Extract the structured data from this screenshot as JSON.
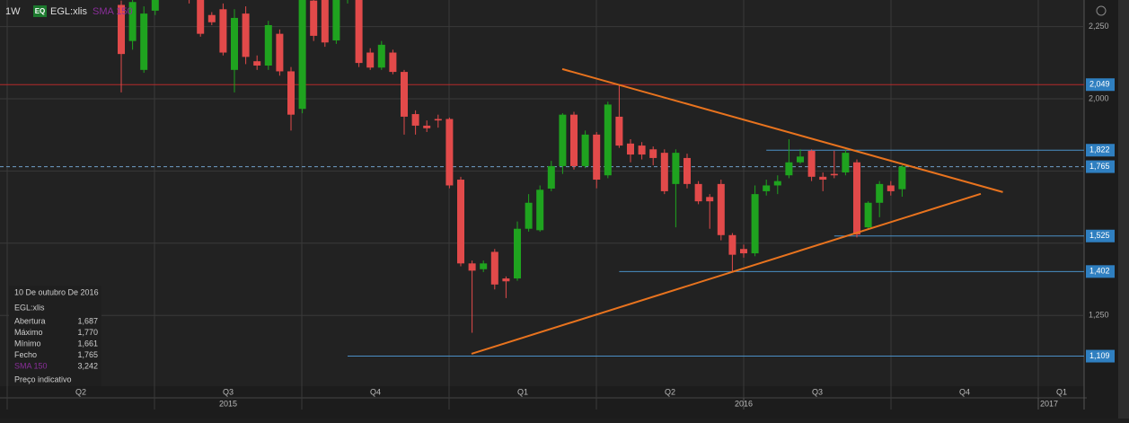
{
  "header": {
    "interval": "1W",
    "badge": "EQ",
    "symbol": "EGL:xlis",
    "indicator": "SMA 150"
  },
  "chart_data": {
    "type": "candlestick",
    "up_color": "#1fa31f",
    "down_color": "#e24a4a",
    "ohlc": [
      [
        2325,
        2340,
        2022,
        2155
      ],
      [
        2200,
        2345,
        2170,
        2335
      ],
      [
        2100,
        2320,
        2090,
        2295
      ],
      [
        2305,
        2360,
        2290,
        2345
      ],
      [
        2360,
        2400,
        2350,
        2380
      ],
      [
        2380,
        2410,
        2350,
        2370
      ],
      [
        2370,
        2390,
        2330,
        2345
      ],
      [
        2345,
        2350,
        2215,
        2225
      ],
      [
        2290,
        2300,
        2255,
        2265
      ],
      [
        2310,
        2330,
        2150,
        2160
      ],
      [
        2100,
        2310,
        2022,
        2280
      ],
      [
        2295,
        2320,
        2120,
        2145
      ],
      [
        2130,
        2150,
        2100,
        2115
      ],
      [
        2115,
        2270,
        2100,
        2255
      ],
      [
        2225,
        2240,
        2080,
        2095
      ],
      [
        2095,
        2110,
        1890,
        1945
      ],
      [
        1965,
        2360,
        1950,
        2342
      ],
      [
        2340,
        2350,
        2200,
        2218
      ],
      [
        2342,
        2360,
        2180,
        2195
      ],
      [
        2202,
        2360,
        2190,
        2342
      ],
      [
        2345,
        2390,
        2330,
        2370
      ],
      [
        2342,
        2360,
        2110,
        2124
      ],
      [
        2160,
        2175,
        2100,
        2108
      ],
      [
        2108,
        2200,
        2100,
        2187
      ],
      [
        2160,
        2170,
        2085,
        2093
      ],
      [
        2093,
        2100,
        1876,
        1938
      ],
      [
        1947,
        1960,
        1876,
        1907
      ],
      [
        1907,
        1925,
        1885,
        1898
      ],
      [
        1930,
        1945,
        1900,
        1925
      ],
      [
        1930,
        1935,
        1690,
        1700
      ],
      [
        1720,
        1730,
        1420,
        1430
      ],
      [
        1430,
        1440,
        1190,
        1405
      ],
      [
        1410,
        1440,
        1400,
        1430
      ],
      [
        1470,
        1480,
        1340,
        1357
      ],
      [
        1378,
        1385,
        1310,
        1368
      ],
      [
        1378,
        1575,
        1370,
        1550
      ],
      [
        1550,
        1670,
        1540,
        1640
      ],
      [
        1545,
        1700,
        1540,
        1685
      ],
      [
        1689,
        1785,
        1680,
        1767
      ],
      [
        1767,
        1950,
        1740,
        1945
      ],
      [
        1945,
        1955,
        1755,
        1767
      ],
      [
        1767,
        1890,
        1760,
        1876
      ],
      [
        1876,
        1885,
        1690,
        1720
      ],
      [
        1735,
        1990,
        1725,
        1980
      ],
      [
        1938,
        2047,
        1830,
        1838
      ],
      [
        1845,
        1860,
        1780,
        1807
      ],
      [
        1838,
        1850,
        1790,
        1807
      ],
      [
        1825,
        1835,
        1770,
        1795
      ],
      [
        1813,
        1825,
        1670,
        1680
      ],
      [
        1705,
        1825,
        1555,
        1813
      ],
      [
        1795,
        1810,
        1690,
        1705
      ],
      [
        1705,
        1715,
        1635,
        1645
      ],
      [
        1660,
        1670,
        1550,
        1645
      ],
      [
        1705,
        1720,
        1510,
        1528
      ],
      [
        1528,
        1535,
        1400,
        1460
      ],
      [
        1480,
        1495,
        1450,
        1465
      ],
      [
        1465,
        1700,
        1455,
        1670
      ],
      [
        1680,
        1720,
        1665,
        1700
      ],
      [
        1700,
        1735,
        1670,
        1715
      ],
      [
        1735,
        1860,
        1725,
        1780
      ],
      [
        1780,
        1825,
        1775,
        1800
      ],
      [
        1820,
        1825,
        1715,
        1730
      ],
      [
        1730,
        1745,
        1680,
        1720
      ],
      [
        1740,
        1820,
        1725,
        1735
      ],
      [
        1745,
        1825,
        1735,
        1813
      ],
      [
        1780,
        1790,
        1520,
        1530
      ],
      [
        1555,
        1645,
        1550,
        1640
      ],
      [
        1640,
        1715,
        1590,
        1705
      ],
      [
        1700,
        1715,
        1665,
        1680
      ],
      [
        1687,
        1770,
        1661,
        1765
      ]
    ],
    "ylim": [
      1005,
      2342
    ],
    "yticks": [
      {
        "value": 1250,
        "label": "1,250"
      },
      {
        "value": 2000,
        "label": "2,000"
      },
      {
        "value": 2250,
        "label": "2,250"
      }
    ],
    "ygrid": [
      1250,
      1500,
      1750,
      2000,
      2250
    ],
    "levels": [
      {
        "value": 2049,
        "label": "2,049",
        "color": "#b52a2a",
        "from_index": -12,
        "style": "solid"
      },
      {
        "value": 1822,
        "label": "1,822",
        "color": "#4a8fc6",
        "from_index": 57,
        "style": "solid"
      },
      {
        "value": 1765,
        "label": "1,765",
        "color": "#6f9fc8",
        "from_index": -12,
        "style": "dashed"
      },
      {
        "value": 1525,
        "label": "1,525",
        "color": "#4a8fc6",
        "from_index": 63,
        "style": "solid"
      },
      {
        "value": 1402,
        "label": "1,402",
        "color": "#4a8fc6",
        "from_index": 44,
        "style": "solid"
      },
      {
        "value": 1109,
        "label": "1,109",
        "color": "#4a8fc6",
        "from_index": 20,
        "style": "solid"
      }
    ],
    "trendlines": [
      {
        "color": "#e8731e",
        "points": [
          [
            38.97,
            2103
          ],
          [
            77.9,
            1677
          ]
        ]
      },
      {
        "color": "#e8731e",
        "points": [
          [
            30.95,
            1117
          ],
          [
            75.95,
            1671
          ]
        ]
      }
    ],
    "quarters": [
      "Q2",
      "Q3",
      "Q4",
      "Q1",
      "Q2",
      "Q3",
      "Q4",
      "Q1"
    ],
    "years": [
      "2015",
      "2016",
      "2017"
    ]
  },
  "info_panel": {
    "date": "10 De outubro De 2016",
    "symbol": "EGL:xlis",
    "rows": [
      [
        "Abertura",
        "1,687"
      ],
      [
        "Máximo",
        "1,770"
      ],
      [
        "Mínimo",
        "1,661"
      ],
      [
        "Fecho",
        "1,765"
      ],
      [
        "SMA 150",
        "3,242"
      ]
    ],
    "note": "Preço indicativo"
  }
}
